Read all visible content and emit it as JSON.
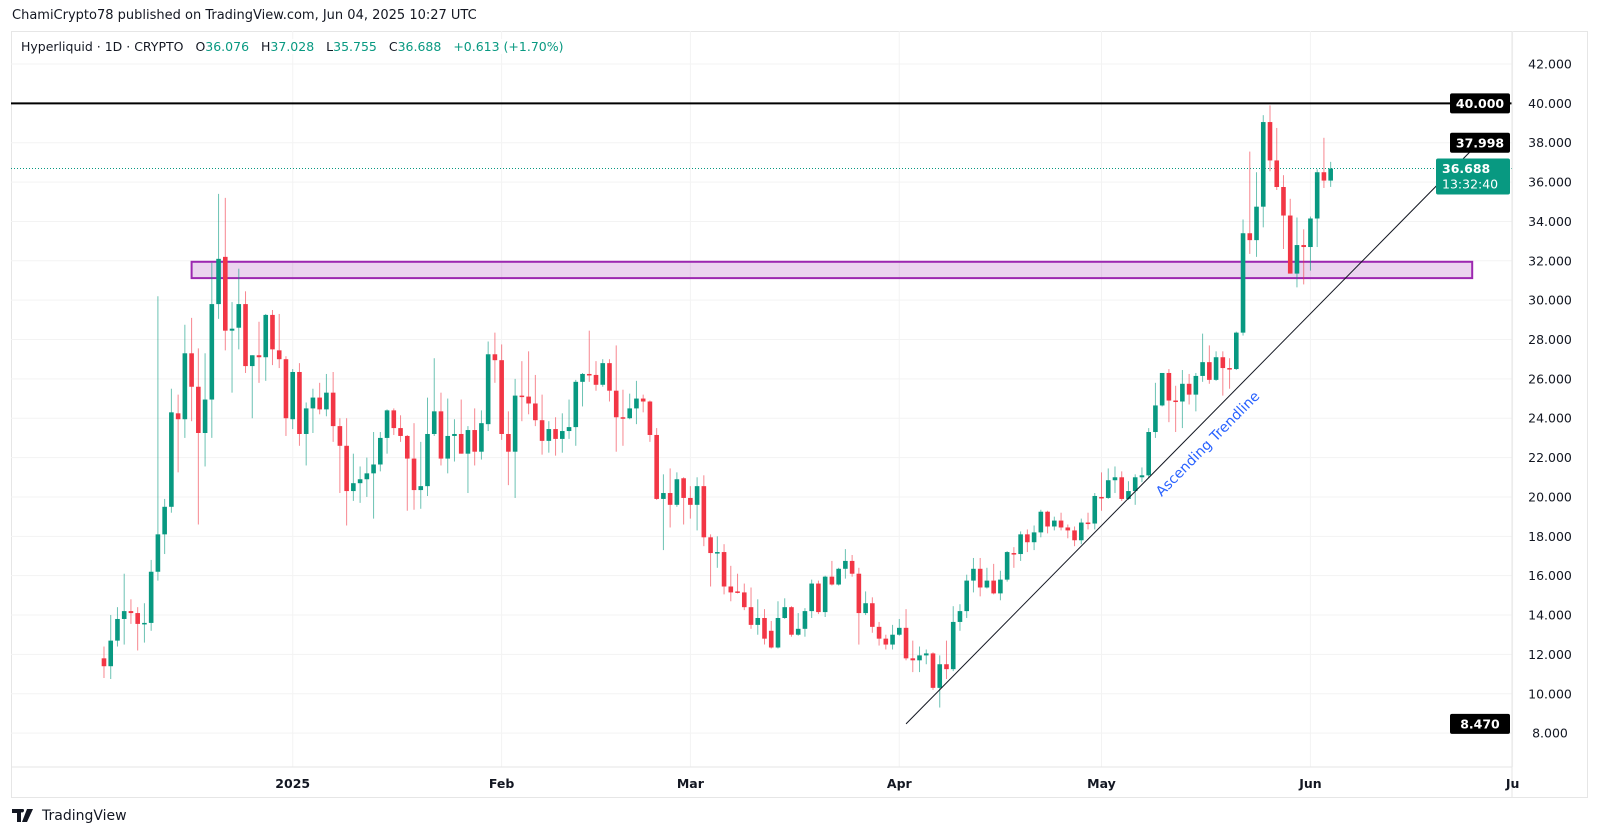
{
  "header": {
    "published": "ChamiCrypto78 published on TradingView.com, Jun 04, 2025 10:27 UTC"
  },
  "legend": {
    "symbol": "Hyperliquid · 1D · CRYPTO",
    "o_label": "O",
    "o": "36.076",
    "h_label": "H",
    "h": "37.028",
    "l_label": "L",
    "l": "35.755",
    "c_label": "C",
    "c": "36.688",
    "change": "+0.613 (+1.70%)"
  },
  "branding": {
    "logo_text": "TradingView",
    "logo_icon": "tradingview-logo-icon"
  },
  "chart_data": {
    "type": "candlestick",
    "interval": "1D",
    "last_date": "2025-06-04",
    "ylim": [
      8,
      42
    ],
    "grid": true,
    "colors": {
      "up": "#089981",
      "down": "#f23645",
      "zone_border": "#9c27b0",
      "zone_fill": "rgba(156,39,176,0.2)",
      "trend_label": "#2962ff",
      "level_line": "#000000"
    },
    "y_ticks": [
      "42.000",
      "40.000",
      "38.000",
      "36.000",
      "34.000",
      "32.000",
      "30.000",
      "28.000",
      "26.000",
      "24.000",
      "22.000",
      "20.000",
      "18.000",
      "16.000",
      "14.000",
      "12.000",
      "10.000",
      "8.000"
    ],
    "x_ticks": [
      {
        "label": "2025",
        "date": "2025-01-01"
      },
      {
        "label": "Feb",
        "date": "2025-02-01"
      },
      {
        "label": "Mar",
        "date": "2025-03-01"
      },
      {
        "label": "Apr",
        "date": "2025-04-01"
      },
      {
        "label": "May",
        "date": "2025-05-01"
      },
      {
        "label": "Jun",
        "date": "2025-06-01"
      },
      {
        "label": "Ju",
        "date": "2025-07-01"
      }
    ],
    "candles_ohlc": [
      [
        11.8,
        12.4,
        10.8,
        11.4
      ],
      [
        11.4,
        14.0,
        10.75,
        12.7
      ],
      [
        12.7,
        14.4,
        12.4,
        13.8
      ],
      [
        13.8,
        16.1,
        12.5,
        14.2
      ],
      [
        14.2,
        14.8,
        13.55,
        14.1
      ],
      [
        14.1,
        14.4,
        12.2,
        13.55
      ],
      [
        13.55,
        14.6,
        12.6,
        13.6
      ],
      [
        13.6,
        16.8,
        13.2,
        16.2
      ],
      [
        16.2,
        30.2,
        15.75,
        18.1
      ],
      [
        18.1,
        19.9,
        17.1,
        19.5
      ],
      [
        19.5,
        25.5,
        19.2,
        24.3
      ],
      [
        24.25,
        25.2,
        21.25,
        23.95
      ],
      [
        23.95,
        28.75,
        23.0,
        27.3
      ],
      [
        27.3,
        29.1,
        23.85,
        25.6
      ],
      [
        25.6,
        27.55,
        18.6,
        23.25
      ],
      [
        23.25,
        27.3,
        21.55,
        24.95
      ],
      [
        24.95,
        31.9,
        23.0,
        29.8
      ],
      [
        29.8,
        35.4,
        29.05,
        32.1
      ],
      [
        32.2,
        35.2,
        27.45,
        28.45
      ],
      [
        28.45,
        29.9,
        25.3,
        28.55
      ],
      [
        28.6,
        31.6,
        27.5,
        29.8
      ],
      [
        29.8,
        30.45,
        26.3,
        26.65
      ],
      [
        26.65,
        27.2,
        24.0,
        27.2
      ],
      [
        27.2,
        28.9,
        25.8,
        27.1
      ],
      [
        27.1,
        29.3,
        25.9,
        29.25
      ],
      [
        29.25,
        29.5,
        26.7,
        27.5
      ],
      [
        27.45,
        29.3,
        26.55,
        27.0
      ],
      [
        27.0,
        27.15,
        23.1,
        24.0
      ],
      [
        23.95,
        26.5,
        23.45,
        26.35
      ],
      [
        26.35,
        26.8,
        22.6,
        23.2
      ],
      [
        23.2,
        24.8,
        21.6,
        24.5
      ],
      [
        24.5,
        25.5,
        23.25,
        25.05
      ],
      [
        25.05,
        25.8,
        24.2,
        24.45
      ],
      [
        24.45,
        26.25,
        24.1,
        25.3
      ],
      [
        25.3,
        26.35,
        22.8,
        23.6
      ],
      [
        23.6,
        24.0,
        20.2,
        22.6
      ],
      [
        22.6,
        24.0,
        18.55,
        20.3
      ],
      [
        20.3,
        22.2,
        19.8,
        20.7
      ],
      [
        20.7,
        21.55,
        19.7,
        20.9
      ],
      [
        20.9,
        22.0,
        20.0,
        21.2
      ],
      [
        21.2,
        23.3,
        18.9,
        21.65
      ],
      [
        21.65,
        23.3,
        21.3,
        23.0
      ],
      [
        23.0,
        24.45,
        22.2,
        24.4
      ],
      [
        24.4,
        24.5,
        23.15,
        23.5
      ],
      [
        23.5,
        24.15,
        22.8,
        23.1
      ],
      [
        23.1,
        23.15,
        19.3,
        21.95
      ],
      [
        21.95,
        23.75,
        19.35,
        20.35
      ],
      [
        20.35,
        22.8,
        19.4,
        20.55
      ],
      [
        20.55,
        25.05,
        20.05,
        23.2
      ],
      [
        23.2,
        27.05,
        23.1,
        24.35
      ],
      [
        24.35,
        25.3,
        21.6,
        21.95
      ],
      [
        21.95,
        25.0,
        21.2,
        23.1
      ],
      [
        23.1,
        23.95,
        21.8,
        23.2
      ],
      [
        23.2,
        24.95,
        22.2,
        22.2
      ],
      [
        22.2,
        23.6,
        20.2,
        23.4
      ],
      [
        23.4,
        24.5,
        21.6,
        22.3
      ],
      [
        22.3,
        24.4,
        21.9,
        23.75
      ],
      [
        23.7,
        27.9,
        23.35,
        27.25
      ],
      [
        27.25,
        28.35,
        25.8,
        26.95
      ],
      [
        26.95,
        27.75,
        22.9,
        23.2
      ],
      [
        23.2,
        24.35,
        20.6,
        22.3
      ],
      [
        22.3,
        26.0,
        19.95,
        25.15
      ],
      [
        25.15,
        26.9,
        23.85,
        25.1
      ],
      [
        25.1,
        27.4,
        24.2,
        24.75
      ],
      [
        24.75,
        26.2,
        23.6,
        23.9
      ],
      [
        23.9,
        25.2,
        22.15,
        22.85
      ],
      [
        22.85,
        23.85,
        22.25,
        23.45
      ],
      [
        23.45,
        24.05,
        22.1,
        22.95
      ],
      [
        22.95,
        24.25,
        22.25,
        23.35
      ],
      [
        23.35,
        24.95,
        22.95,
        23.55
      ],
      [
        23.55,
        25.95,
        22.6,
        25.85
      ],
      [
        25.85,
        26.3,
        24.6,
        26.25
      ],
      [
        26.25,
        28.45,
        25.85,
        26.2
      ],
      [
        26.2,
        26.9,
        25.4,
        25.7
      ],
      [
        25.7,
        27.0,
        25.6,
        26.8
      ],
      [
        26.8,
        27.0,
        24.85,
        25.4
      ],
      [
        25.4,
        27.7,
        22.3,
        24.05
      ],
      [
        24.05,
        25.45,
        22.6,
        24.0
      ],
      [
        24.0,
        25.25,
        23.95,
        24.5
      ],
      [
        24.5,
        25.9,
        23.7,
        25.0
      ],
      [
        25.0,
        25.2,
        24.3,
        24.85
      ],
      [
        24.85,
        24.9,
        22.8,
        23.15
      ],
      [
        23.15,
        23.5,
        19.85,
        19.9
      ],
      [
        19.9,
        21.15,
        17.3,
        20.2
      ],
      [
        20.2,
        21.45,
        18.45,
        19.6
      ],
      [
        19.6,
        21.25,
        19.5,
        20.9
      ],
      [
        20.95,
        21.0,
        18.6,
        19.95
      ],
      [
        19.95,
        20.55,
        18.9,
        19.6
      ],
      [
        19.6,
        21.0,
        18.3,
        20.55
      ],
      [
        20.55,
        21.1,
        17.5,
        17.95
      ],
      [
        17.95,
        18.1,
        15.45,
        17.15
      ],
      [
        17.15,
        18.0,
        16.4,
        17.2
      ],
      [
        17.2,
        17.6,
        15.05,
        15.45
      ],
      [
        15.45,
        16.5,
        14.7,
        15.15
      ],
      [
        15.2,
        16.1,
        15.1,
        15.15
      ],
      [
        15.15,
        15.6,
        14.25,
        14.4
      ],
      [
        14.4,
        15.4,
        13.3,
        13.5
      ],
      [
        13.5,
        14.8,
        13.0,
        13.85
      ],
      [
        13.85,
        14.3,
        12.5,
        12.8
      ],
      [
        13.2,
        13.7,
        12.3,
        12.35
      ],
      [
        12.35,
        14.7,
        12.3,
        13.85
      ],
      [
        13.85,
        14.85,
        13.8,
        14.4
      ],
      [
        14.4,
        14.45,
        12.9,
        13.0
      ],
      [
        13.0,
        14.1,
        12.95,
        13.3
      ],
      [
        13.3,
        14.35,
        12.9,
        14.2
      ],
      [
        14.2,
        15.8,
        13.85,
        15.6
      ],
      [
        15.6,
        15.75,
        14.05,
        14.15
      ],
      [
        14.15,
        16.0,
        13.9,
        15.95
      ],
      [
        15.95,
        16.75,
        15.5,
        15.55
      ],
      [
        15.55,
        16.4,
        15.5,
        16.35
      ],
      [
        16.35,
        17.35,
        15.85,
        16.75
      ],
      [
        16.75,
        17.05,
        15.95,
        16.1
      ],
      [
        16.1,
        16.4,
        12.5,
        14.1
      ],
      [
        14.1,
        15.2,
        14.0,
        14.6
      ],
      [
        14.6,
        14.9,
        13.1,
        13.4
      ],
      [
        13.4,
        13.65,
        12.45,
        12.8
      ],
      [
        12.8,
        13.0,
        12.25,
        12.5
      ],
      [
        12.5,
        13.5,
        12.25,
        13.0
      ],
      [
        13.0,
        13.8,
        12.95,
        13.35
      ],
      [
        13.35,
        14.3,
        11.7,
        11.8
      ],
      [
        11.8,
        12.7,
        11.1,
        11.7
      ],
      [
        11.7,
        12.4,
        11.1,
        11.95
      ],
      [
        11.95,
        12.25,
        11.5,
        12.05
      ],
      [
        12.05,
        12.1,
        10.2,
        10.3
      ],
      [
        10.3,
        11.95,
        9.3,
        11.5
      ],
      [
        11.5,
        12.7,
        10.75,
        11.25
      ],
      [
        11.25,
        14.45,
        11.15,
        13.65
      ],
      [
        13.65,
        14.55,
        13.2,
        14.2
      ],
      [
        14.2,
        16.05,
        13.85,
        15.75
      ],
      [
        15.75,
        16.9,
        15.15,
        16.35
      ],
      [
        16.35,
        16.9,
        14.95,
        15.4
      ],
      [
        15.4,
        16.4,
        15.35,
        15.75
      ],
      [
        15.75,
        16.6,
        15.05,
        15.1
      ],
      [
        15.1,
        16.25,
        14.75,
        15.8
      ],
      [
        15.8,
        17.25,
        15.7,
        17.2
      ],
      [
        17.15,
        17.45,
        16.4,
        17.1
      ],
      [
        17.1,
        18.25,
        16.75,
        18.1
      ],
      [
        18.1,
        18.35,
        17.2,
        17.7
      ],
      [
        17.7,
        18.55,
        17.3,
        18.2
      ],
      [
        18.2,
        19.35,
        17.95,
        19.25
      ],
      [
        19.25,
        19.3,
        18.15,
        18.5
      ],
      [
        18.5,
        19.0,
        18.3,
        18.8
      ],
      [
        18.8,
        19.2,
        18.3,
        18.45
      ],
      [
        18.45,
        18.6,
        17.9,
        18.3
      ],
      [
        18.3,
        18.5,
        17.5,
        17.8
      ],
      [
        17.8,
        18.9,
        17.6,
        18.7
      ],
      [
        18.7,
        19.2,
        18.35,
        18.65
      ],
      [
        18.65,
        20.2,
        18.35,
        20.05
      ],
      [
        20.0,
        21.25,
        19.3,
        19.95
      ],
      [
        19.95,
        21.45,
        19.9,
        20.85
      ],
      [
        20.85,
        21.55,
        20.2,
        21.0
      ],
      [
        21.0,
        21.3,
        19.8,
        19.9
      ],
      [
        19.9,
        20.8,
        19.85,
        20.3
      ],
      [
        20.3,
        21.15,
        19.6,
        21.0
      ],
      [
        21.0,
        21.5,
        20.75,
        21.1
      ],
      [
        21.1,
        23.5,
        20.95,
        23.3
      ],
      [
        23.3,
        25.8,
        23.0,
        24.65
      ],
      [
        24.65,
        26.3,
        24.6,
        26.3
      ],
      [
        26.3,
        26.5,
        23.8,
        24.9
      ],
      [
        24.9,
        25.65,
        23.3,
        24.85
      ],
      [
        24.85,
        26.45,
        23.5,
        25.75
      ],
      [
        25.75,
        26.25,
        24.7,
        25.2
      ],
      [
        25.2,
        26.3,
        24.35,
        26.15
      ],
      [
        26.15,
        28.3,
        25.85,
        26.85
      ],
      [
        26.85,
        27.7,
        25.75,
        25.95
      ],
      [
        25.95,
        27.4,
        25.9,
        27.1
      ],
      [
        27.1,
        27.4,
        25.15,
        26.55
      ],
      [
        26.55,
        27.05,
        25.5,
        26.5
      ],
      [
        26.5,
        28.4,
        26.45,
        28.35
      ],
      [
        28.35,
        34.1,
        28.2,
        33.4
      ],
      [
        33.4,
        37.55,
        32.35,
        33.05
      ],
      [
        33.05,
        36.5,
        32.2,
        34.75
      ],
      [
        34.75,
        39.4,
        33.7,
        39.05
      ],
      [
        39.05,
        39.9,
        36.55,
        37.1
      ],
      [
        37.1,
        38.75,
        35.6,
        35.75
      ],
      [
        35.75,
        36.35,
        32.6,
        34.3
      ],
      [
        34.3,
        35.15,
        31.35,
        31.35
      ],
      [
        31.35,
        34.2,
        30.65,
        32.8
      ],
      [
        32.8,
        33.6,
        30.8,
        32.7
      ],
      [
        32.7,
        34.25,
        31.5,
        34.15
      ],
      [
        34.15,
        36.65,
        32.7,
        36.5
      ],
      [
        36.5,
        38.25,
        35.7,
        36.076
      ],
      [
        36.076,
        37.028,
        35.755,
        36.688
      ]
    ],
    "horizontal_level": {
      "price": 40,
      "label": "40.000"
    },
    "zone": {
      "low": 31.12,
      "high": 31.95,
      "from": "2024-12-17",
      "to": "2025-06-25"
    },
    "trendline": {
      "from": {
        "date": "2025-04-02",
        "price": 8.47,
        "label": "8.470"
      },
      "to": {
        "date": "2025-06-26",
        "price": 37.998,
        "label": "37.998"
      },
      "text": "Ascending Trendline"
    },
    "current_price": {
      "price": 36.688,
      "label": "36.688",
      "countdown": "13:32:40"
    }
  }
}
